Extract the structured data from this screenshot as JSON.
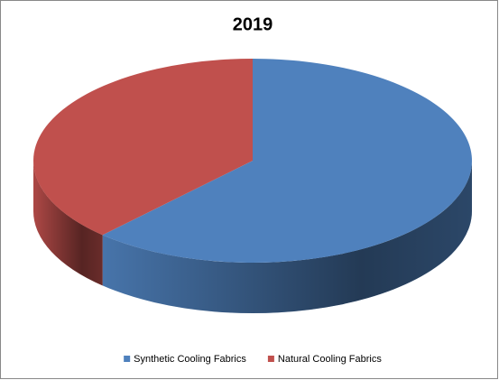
{
  "chart_data": {
    "type": "pie",
    "title": "2019",
    "categories": [
      "Synthetic Cooling Fabrics",
      "Natural Cooling Fabrics"
    ],
    "values": [
      62,
      38
    ],
    "colors": [
      "#4f81bd",
      "#c0504d"
    ],
    "legend": "bottom"
  }
}
